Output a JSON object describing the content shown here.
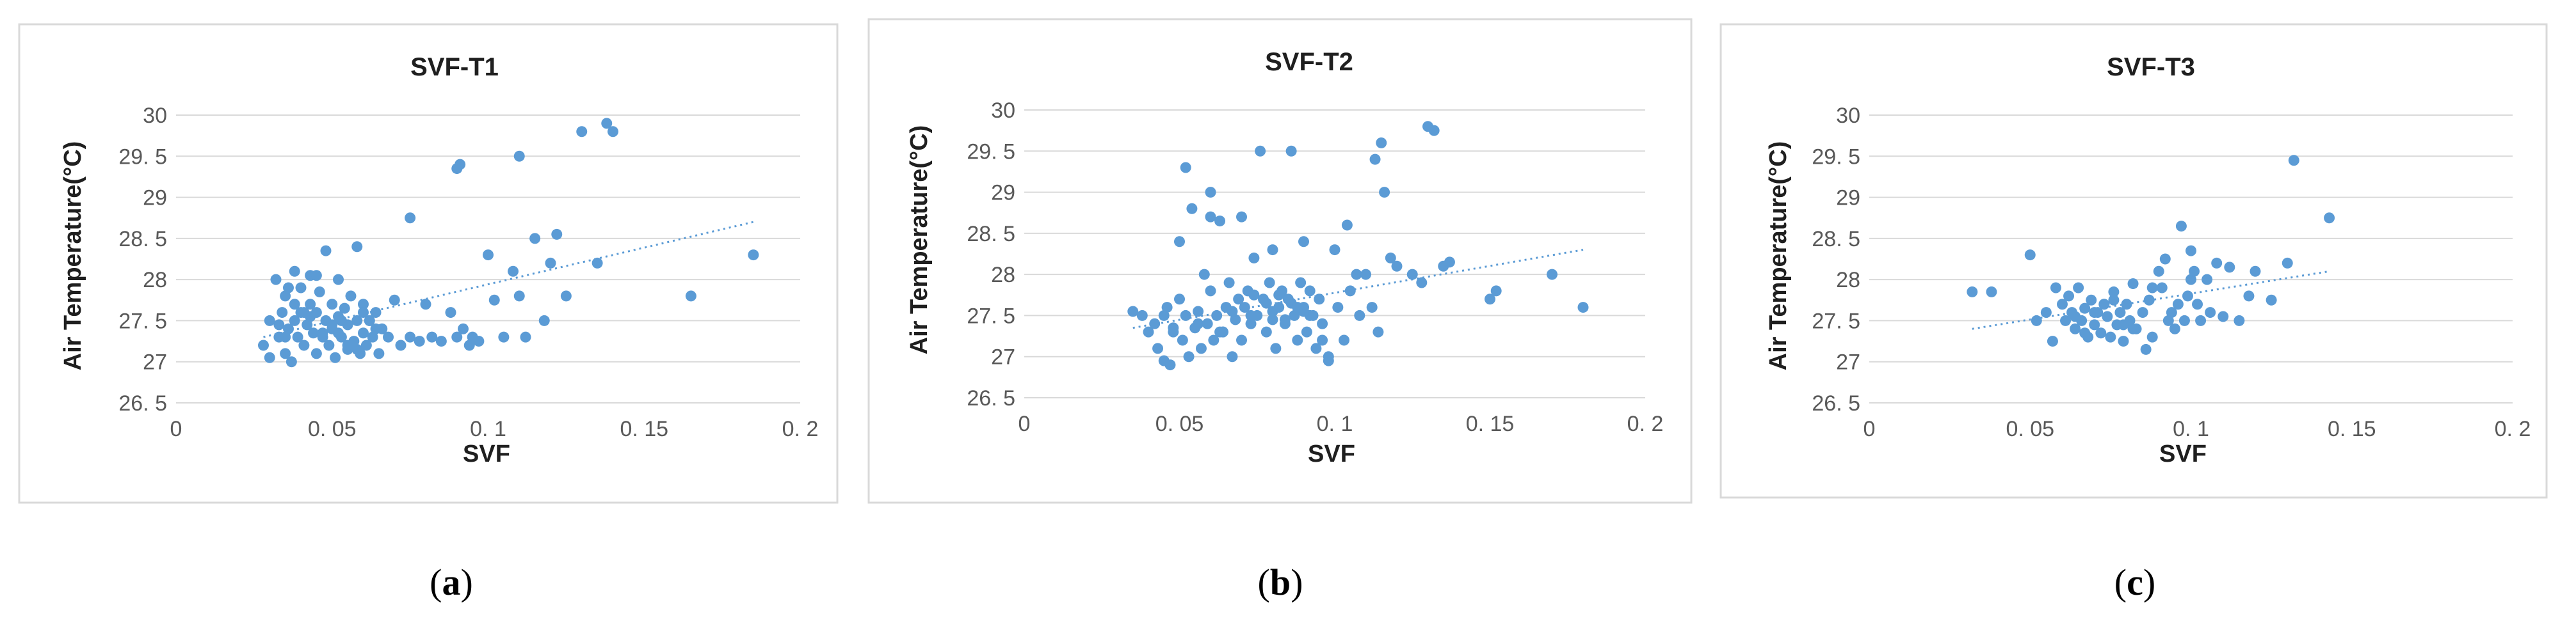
{
  "colors": {
    "point": "#5b9bd5",
    "frame": "#d9d9d9",
    "grid": "#d9d9d9"
  },
  "chart_data": [
    {
      "type": "scatter",
      "title": "SVF-T1",
      "xlabel": "SVF",
      "ylabel": "Air Temperature(°C)",
      "xlim": [
        0,
        0.2
      ],
      "ylim": [
        26.5,
        30
      ],
      "xticks": [
        "0",
        "0. 05",
        "0. 1",
        "0. 15",
        "0. 2"
      ],
      "yticks": [
        "26. 5",
        "27",
        "27. 5",
        "28",
        "28. 5",
        "29",
        "29. 5",
        "30"
      ],
      "grid": true,
      "trendline": [
        [
          0.028,
          27.3
        ],
        [
          0.185,
          28.7
        ]
      ],
      "caption": {
        "open": "(",
        "letter": "a",
        "close": ")"
      },
      "x": [
        0.028,
        0.03,
        0.03,
        0.032,
        0.033,
        0.034,
        0.035,
        0.035,
        0.036,
        0.037,
        0.038,
        0.038,
        0.039,
        0.04,
        0.04,
        0.041,
        0.042,
        0.043,
        0.043,
        0.044,
        0.045,
        0.045,
        0.046,
        0.047,
        0.048,
        0.048,
        0.049,
        0.05,
        0.05,
        0.051,
        0.052,
        0.052,
        0.053,
        0.054,
        0.055,
        0.055,
        0.056,
        0.057,
        0.058,
        0.058,
        0.059,
        0.06,
        0.06,
        0.061,
        0.062,
        0.063,
        0.064,
        0.065,
        0.066,
        0.068,
        0.07,
        0.072,
        0.075,
        0.078,
        0.08,
        0.082,
        0.085,
        0.088,
        0.09,
        0.092,
        0.094,
        0.095,
        0.097,
        0.1,
        0.102,
        0.105,
        0.108,
        0.11,
        0.112,
        0.115,
        0.118,
        0.12,
        0.122,
        0.125,
        0.13,
        0.135,
        0.138,
        0.14,
        0.165,
        0.185,
        0.036,
        0.041,
        0.047,
        0.053,
        0.058,
        0.064,
        0.09,
        0.091,
        0.11,
        0.075,
        0.035,
        0.043,
        0.05,
        0.055,
        0.06,
        0.033,
        0.045,
        0.038,
        0.052,
        0.062
      ],
      "y": [
        27.2,
        27.05,
        27.5,
        28.0,
        27.3,
        27.6,
        27.1,
        27.8,
        27.4,
        27.0,
        27.5,
        28.1,
        27.3,
        27.6,
        27.9,
        27.2,
        27.45,
        27.7,
        28.05,
        27.35,
        27.1,
        27.6,
        27.85,
        27.3,
        27.5,
        28.35,
        27.2,
        27.4,
        27.7,
        27.05,
        27.55,
        28.0,
        27.3,
        27.65,
        27.15,
        27.45,
        27.8,
        27.25,
        27.5,
        28.4,
        27.1,
        27.35,
        27.7,
        27.2,
        27.5,
        27.3,
        27.6,
        27.1,
        27.4,
        27.3,
        27.75,
        27.2,
        27.3,
        27.25,
        27.7,
        27.3,
        27.25,
        27.6,
        27.3,
        27.4,
        27.2,
        27.3,
        27.25,
        28.3,
        27.75,
        27.3,
        28.1,
        27.8,
        27.3,
        28.5,
        27.5,
        28.2,
        28.55,
        27.8,
        29.8,
        28.2,
        29.9,
        29.8,
        27.8,
        28.3,
        27.9,
        27.6,
        27.35,
        27.5,
        27.15,
        27.4,
        29.35,
        29.4,
        29.5,
        28.75,
        27.3,
        27.55,
        27.45,
        27.2,
        27.6,
        27.45,
        28.05,
        27.7,
        27.35,
        27.5
      ]
    },
    {
      "type": "scatter",
      "title": "SVF-T2",
      "xlabel": "SVF",
      "ylabel": "Air Temperature(°C)",
      "xlim": [
        0,
        0.2
      ],
      "ylim": [
        26.5,
        30
      ],
      "xticks": [
        "0",
        "0. 05",
        "0. 1",
        "0. 15",
        "0. 2"
      ],
      "yticks": [
        "26. 5",
        "27",
        "27. 5",
        "28",
        "28. 5",
        "29",
        "29. 5",
        "30"
      ],
      "grid": true,
      "trendline": [
        [
          0.035,
          27.35
        ],
        [
          0.18,
          28.3
        ]
      ],
      "caption": {
        "open": "(",
        "letter": "b",
        "close": ")"
      },
      "x": [
        0.035,
        0.038,
        0.04,
        0.042,
        0.043,
        0.045,
        0.046,
        0.047,
        0.048,
        0.05,
        0.05,
        0.051,
        0.052,
        0.053,
        0.054,
        0.055,
        0.056,
        0.057,
        0.058,
        0.059,
        0.06,
        0.06,
        0.061,
        0.062,
        0.063,
        0.064,
        0.065,
        0.066,
        0.067,
        0.068,
        0.07,
        0.07,
        0.071,
        0.072,
        0.073,
        0.074,
        0.075,
        0.076,
        0.077,
        0.078,
        0.079,
        0.08,
        0.08,
        0.081,
        0.082,
        0.083,
        0.084,
        0.085,
        0.086,
        0.087,
        0.088,
        0.089,
        0.09,
        0.09,
        0.091,
        0.092,
        0.093,
        0.094,
        0.095,
        0.096,
        0.098,
        0.1,
        0.101,
        0.103,
        0.105,
        0.107,
        0.108,
        0.11,
        0.112,
        0.114,
        0.115,
        0.116,
        0.118,
        0.12,
        0.125,
        0.128,
        0.13,
        0.132,
        0.135,
        0.137,
        0.15,
        0.152,
        0.17,
        0.18,
        0.052,
        0.06,
        0.067,
        0.074,
        0.08,
        0.086,
        0.092,
        0.098,
        0.104,
        0.048,
        0.056,
        0.063,
        0.069,
        0.078,
        0.084,
        0.09,
        0.096,
        0.073,
        0.082,
        0.045,
        0.064,
        0.088,
        0.113
      ],
      "y": [
        27.55,
        27.5,
        27.3,
        27.4,
        27.1,
        27.5,
        27.6,
        26.9,
        27.3,
        27.7,
        28.4,
        27.2,
        27.5,
        27.0,
        28.8,
        27.35,
        27.55,
        27.1,
        28.0,
        27.4,
        27.8,
        29.0,
        27.2,
        27.5,
        28.65,
        27.3,
        27.6,
        27.9,
        27.0,
        27.45,
        28.7,
        27.2,
        27.6,
        27.8,
        27.4,
        28.2,
        27.5,
        29.5,
        27.7,
        27.3,
        27.9,
        27.55,
        28.3,
        27.1,
        27.6,
        27.8,
        27.4,
        27.7,
        29.5,
        27.5,
        27.2,
        27.9,
        27.6,
        28.4,
        27.3,
        27.8,
        27.5,
        27.1,
        27.7,
        27.4,
        27.0,
        28.3,
        27.6,
        27.2,
        27.8,
        28.0,
        27.5,
        28.0,
        27.6,
        27.3,
        29.6,
        29.0,
        28.2,
        28.1,
        28.0,
        27.9,
        29.8,
        29.75,
        28.1,
        28.15,
        27.7,
        27.8,
        28.0,
        27.6,
        29.3,
        28.7,
        27.55,
        27.75,
        27.45,
        27.65,
        27.5,
        26.95,
        28.6,
        27.35,
        27.4,
        27.3,
        27.7,
        27.65,
        27.45,
        27.55,
        27.2,
        27.5,
        27.75,
        26.95,
        27.3,
        27.6,
        29.4
      ]
    },
    {
      "type": "scatter",
      "title": "SVF-T3",
      "xlabel": "SVF",
      "ylabel": "Air Temperature(°C)",
      "xlim": [
        0,
        0.2
      ],
      "ylim": [
        26.5,
        30
      ],
      "xticks": [
        "0",
        "0. 05",
        "0. 1",
        "0. 15",
        "0. 2"
      ],
      "yticks": [
        "26. 5",
        "27",
        "27. 5",
        "28",
        "28. 5",
        "29",
        "29. 5",
        "30"
      ],
      "grid": true,
      "trendline": [
        [
          0.032,
          27.4
        ],
        [
          0.143,
          28.1
        ]
      ],
      "caption": {
        "open": "(",
        "letter": "c",
        "close": ")"
      },
      "x": [
        0.032,
        0.038,
        0.05,
        0.052,
        0.055,
        0.057,
        0.058,
        0.06,
        0.061,
        0.062,
        0.063,
        0.064,
        0.065,
        0.066,
        0.067,
        0.068,
        0.069,
        0.07,
        0.071,
        0.072,
        0.073,
        0.074,
        0.075,
        0.076,
        0.077,
        0.078,
        0.079,
        0.08,
        0.081,
        0.082,
        0.083,
        0.085,
        0.086,
        0.087,
        0.088,
        0.09,
        0.091,
        0.092,
        0.094,
        0.095,
        0.096,
        0.097,
        0.098,
        0.099,
        0.1,
        0.1,
        0.101,
        0.102,
        0.103,
        0.105,
        0.106,
        0.108,
        0.11,
        0.112,
        0.115,
        0.118,
        0.12,
        0.125,
        0.13,
        0.132,
        0.143,
        0.064,
        0.07,
        0.076,
        0.082,
        0.088,
        0.093,
        0.067,
        0.073,
        0.079
      ],
      "y": [
        27.85,
        27.85,
        28.3,
        27.5,
        27.6,
        27.25,
        27.9,
        27.7,
        27.5,
        27.8,
        27.6,
        27.4,
        27.9,
        27.5,
        27.65,
        27.3,
        27.75,
        27.45,
        27.6,
        27.35,
        27.7,
        27.55,
        27.3,
        27.85,
        27.45,
        27.6,
        27.25,
        27.7,
        27.5,
        27.95,
        27.4,
        27.6,
        27.15,
        27.75,
        27.3,
        28.1,
        27.9,
        28.25,
        27.6,
        27.4,
        27.7,
        28.65,
        27.5,
        27.8,
        28.35,
        28.0,
        28.1,
        27.7,
        27.5,
        28.0,
        27.6,
        28.2,
        27.55,
        28.15,
        27.5,
        27.8,
        28.1,
        27.75,
        28.2,
        29.45,
        28.75,
        27.55,
        27.6,
        27.75,
        27.4,
        27.9,
        27.5,
        27.35,
        27.7,
        27.45
      ]
    }
  ]
}
